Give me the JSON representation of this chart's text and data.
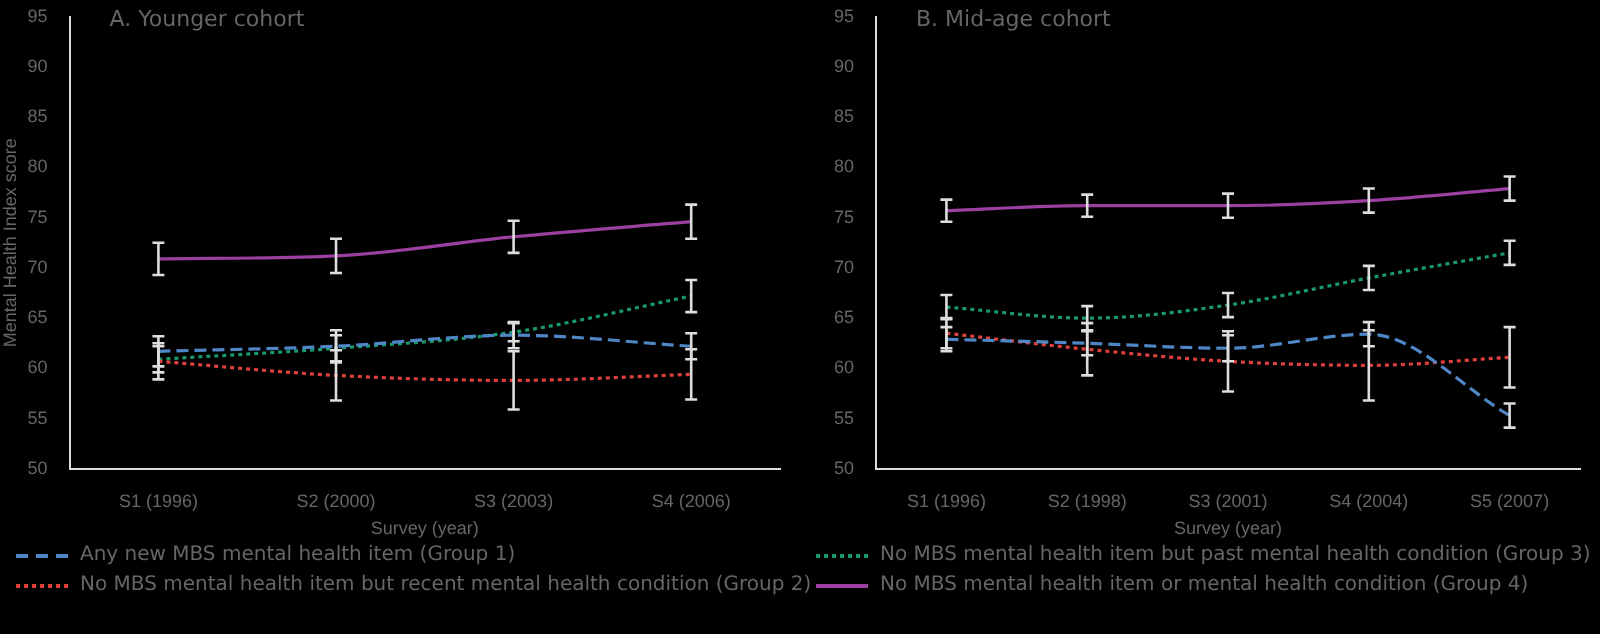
{
  "chart_data": [
    {
      "type": "line",
      "title": "A. Younger cohort",
      "xlabel": "Survey (year)",
      "ylabel": "Mental Health Index score",
      "categories": [
        "S1 (1996)",
        "S2 (2000)",
        "S3 (2003)",
        "S4 (2006)"
      ],
      "ylim": [
        50,
        95
      ],
      "yticks": [
        50,
        55,
        60,
        65,
        70,
        75,
        80,
        85,
        90,
        95
      ],
      "grid": false,
      "legend": "bottom",
      "marker": "none",
      "series": [
        {
          "name": "Any new MBS mental health item (Group 1)",
          "color": "#4f86c6",
          "line_style": "dashed",
          "values": [
            61.7,
            62.2,
            63.3,
            62.2
          ],
          "errors": [
            1.5,
            1.6,
            1.3,
            1.3
          ]
        },
        {
          "name": "No MBS mental health item but recent mental health condition (Group 2)",
          "color": "#e0403a",
          "line_style": "dotted",
          "values": [
            60.7,
            59.3,
            58.8,
            59.4
          ],
          "errors": [
            1.8,
            2.5,
            2.9,
            2.5
          ]
        },
        {
          "name": "No MBS mental health item but past mental health condition (Group 3)",
          "color": "#1a9a6a",
          "line_style": "dotted",
          "values": [
            60.9,
            62.0,
            63.6,
            67.2
          ],
          "errors": [
            1.3,
            1.3,
            0.9,
            1.6
          ]
        },
        {
          "name": "No MBS mental health item or mental health condition (Group 4)",
          "color": "#9b3fa0",
          "line_style": "solid",
          "values": [
            70.9,
            71.2,
            73.1,
            74.6
          ],
          "errors": [
            1.6,
            1.7,
            1.6,
            1.7
          ]
        }
      ]
    },
    {
      "type": "line",
      "title": "B. Mid-age cohort",
      "xlabel": "Survey (year)",
      "categories": [
        "S1 (1996)",
        "S2 (1998)",
        "S3 (2001)",
        "S4 (2004)",
        "S5 (2007)"
      ],
      "ylim": [
        50,
        95
      ],
      "yticks": [
        50,
        55,
        60,
        65,
        70,
        75,
        80,
        85,
        90,
        95
      ],
      "grid": false,
      "marker": "none",
      "series": [
        {
          "color": "#4f86c6",
          "line_style": "dashed",
          "values": [
            62.9,
            62.5,
            62.0,
            63.4,
            55.3
          ],
          "errors": [
            1.2,
            1.2,
            1.3,
            1.2,
            1.2
          ]
        },
        {
          "color": "#e0403a",
          "line_style": "dotted",
          "values": [
            63.5,
            61.9,
            60.7,
            60.3,
            61.1
          ],
          "errors": [
            1.5,
            2.6,
            3.0,
            3.5,
            3.0
          ]
        },
        {
          "color": "#1a9a6a",
          "line_style": "dotted",
          "values": [
            66.1,
            65.0,
            66.3,
            69.0,
            71.5
          ],
          "errors": [
            1.2,
            1.2,
            1.2,
            1.2,
            1.2
          ]
        },
        {
          "color": "#9b3fa0",
          "line_style": "solid",
          "values": [
            75.7,
            76.2,
            76.2,
            76.7,
            77.9
          ],
          "errors": [
            1.1,
            1.1,
            1.2,
            1.2,
            1.2
          ]
        }
      ]
    }
  ]
}
